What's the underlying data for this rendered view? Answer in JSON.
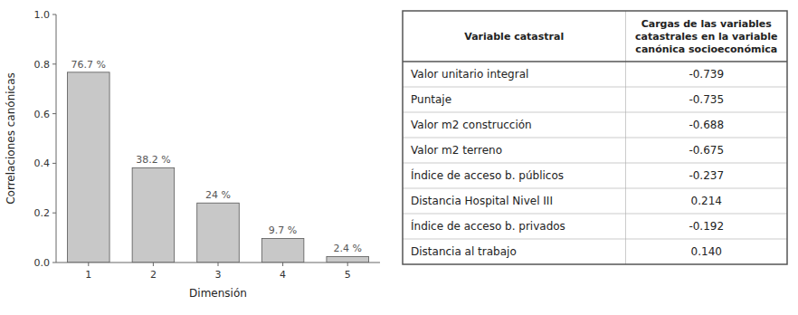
{
  "chart_data": [
    {
      "type": "bar",
      "categories": [
        1,
        2,
        3,
        4,
        5
      ],
      "values": [
        0.767,
        0.382,
        0.24,
        0.097,
        0.024
      ],
      "value_labels": [
        "76.7 %",
        "38.2 %",
        "24 %",
        "9.7 %",
        "2.4 %"
      ],
      "data_labels": true,
      "color": "#c8c8c8",
      "x_label": "Dimensión",
      "y_label": "Correlaciones canónicas",
      "ylim": [
        0.0,
        1.0
      ],
      "yticks": [
        {
          "value": 0.0,
          "label": "0.0"
        },
        0.2,
        0.4,
        0.6,
        0.8,
        {
          "value": 1.0,
          "label": "1.0"
        }
      ],
      "grid": false
    },
    {
      "type": "table",
      "columns": [
        "Variable catastral",
        "Cargas de las variables\ncatastrales en la variable\ncanónica socioeconómica"
      ],
      "categories": [
        "Valor unitario integral",
        "Puntaje",
        "Valor m2 construcción",
        "Valor m2 terreno",
        "Índice de acceso b. públicos",
        "Distancia Hospital Nivel III",
        "Índice de acceso b. privados",
        "Distancia al trabajo"
      ],
      "values": [
        -0.739,
        -0.735,
        -0.688,
        -0.675,
        -0.237,
        0.214,
        -0.192,
        0.14
      ],
      "value_labels": [
        "-0.739",
        "-0.735",
        "-0.688",
        "-0.675",
        "-0.237",
        "0.214",
        "-0.192",
        "0.140"
      ]
    }
  ]
}
